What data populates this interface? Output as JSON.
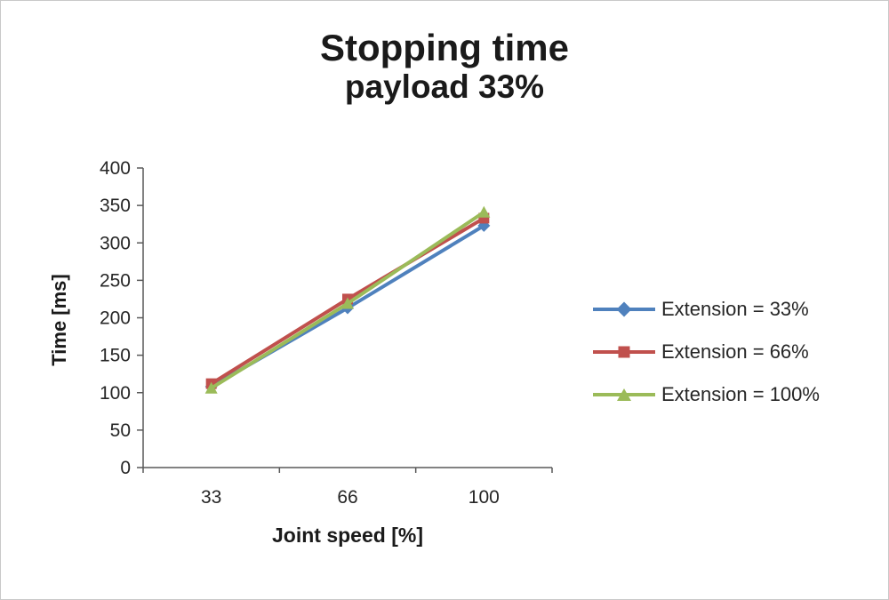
{
  "title": {
    "line1": "Stopping time",
    "line2": "payload 33%"
  },
  "chart_data": {
    "type": "line",
    "title": "Stopping time",
    "subtitle": "payload 33%",
    "xlabel": "Joint speed [%]",
    "ylabel": "Time [ms]",
    "categories": [
      "33",
      "66",
      "100"
    ],
    "series": [
      {
        "name": "Extension = 33%",
        "color": "#4F81BD",
        "marker": "diamond",
        "values": [
          108,
          213,
          323
        ]
      },
      {
        "name": "Extension = 66%",
        "color": "#C0504D",
        "marker": "square",
        "values": [
          112,
          225,
          333
        ]
      },
      {
        "name": "Extension = 100%",
        "color": "#9BBB59",
        "marker": "triangle",
        "values": [
          106,
          219,
          341
        ]
      }
    ],
    "ylim": [
      0,
      400
    ],
    "y_ticks": [
      0,
      50,
      100,
      150,
      200,
      250,
      300,
      350,
      400
    ],
    "grid": false,
    "legend_position": "right",
    "axis_color": "#595959"
  }
}
